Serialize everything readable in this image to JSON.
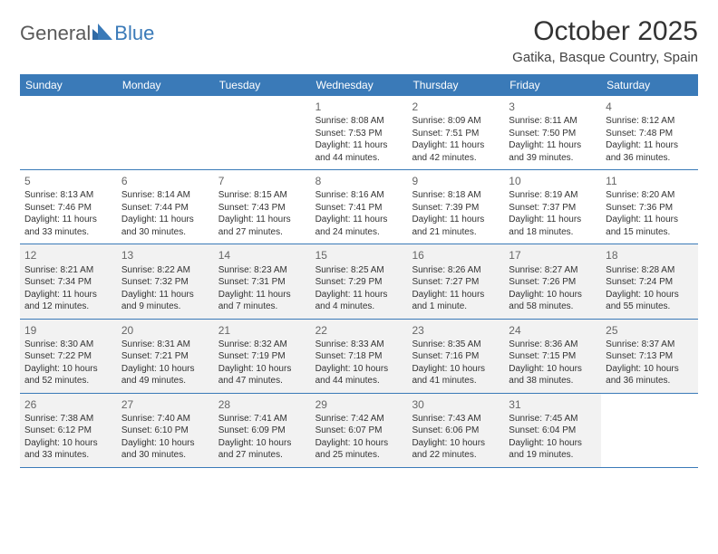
{
  "logo": {
    "text1": "General",
    "text2": "Blue"
  },
  "title": "October 2025",
  "location": "Gatika, Basque Country, Spain",
  "colors": {
    "header_bg": "#3a7ab8",
    "header_text": "#ffffff",
    "border": "#3a7ab8",
    "shaded": "#f2f2f2",
    "text": "#333333"
  },
  "weekdays": [
    "Sunday",
    "Monday",
    "Tuesday",
    "Wednesday",
    "Thursday",
    "Friday",
    "Saturday"
  ],
  "weeks": [
    [
      {
        "empty": true
      },
      {
        "empty": true
      },
      {
        "empty": true
      },
      {
        "day": "1",
        "sunrise": "Sunrise: 8:08 AM",
        "sunset": "Sunset: 7:53 PM",
        "daylight1": "Daylight: 11 hours",
        "daylight2": "and 44 minutes."
      },
      {
        "day": "2",
        "sunrise": "Sunrise: 8:09 AM",
        "sunset": "Sunset: 7:51 PM",
        "daylight1": "Daylight: 11 hours",
        "daylight2": "and 42 minutes."
      },
      {
        "day": "3",
        "sunrise": "Sunrise: 8:11 AM",
        "sunset": "Sunset: 7:50 PM",
        "daylight1": "Daylight: 11 hours",
        "daylight2": "and 39 minutes."
      },
      {
        "day": "4",
        "sunrise": "Sunrise: 8:12 AM",
        "sunset": "Sunset: 7:48 PM",
        "daylight1": "Daylight: 11 hours",
        "daylight2": "and 36 minutes."
      }
    ],
    [
      {
        "day": "5",
        "sunrise": "Sunrise: 8:13 AM",
        "sunset": "Sunset: 7:46 PM",
        "daylight1": "Daylight: 11 hours",
        "daylight2": "and 33 minutes."
      },
      {
        "day": "6",
        "sunrise": "Sunrise: 8:14 AM",
        "sunset": "Sunset: 7:44 PM",
        "daylight1": "Daylight: 11 hours",
        "daylight2": "and 30 minutes."
      },
      {
        "day": "7",
        "sunrise": "Sunrise: 8:15 AM",
        "sunset": "Sunset: 7:43 PM",
        "daylight1": "Daylight: 11 hours",
        "daylight2": "and 27 minutes."
      },
      {
        "day": "8",
        "sunrise": "Sunrise: 8:16 AM",
        "sunset": "Sunset: 7:41 PM",
        "daylight1": "Daylight: 11 hours",
        "daylight2": "and 24 minutes."
      },
      {
        "day": "9",
        "sunrise": "Sunrise: 8:18 AM",
        "sunset": "Sunset: 7:39 PM",
        "daylight1": "Daylight: 11 hours",
        "daylight2": "and 21 minutes."
      },
      {
        "day": "10",
        "sunrise": "Sunrise: 8:19 AM",
        "sunset": "Sunset: 7:37 PM",
        "daylight1": "Daylight: 11 hours",
        "daylight2": "and 18 minutes."
      },
      {
        "day": "11",
        "sunrise": "Sunrise: 8:20 AM",
        "sunset": "Sunset: 7:36 PM",
        "daylight1": "Daylight: 11 hours",
        "daylight2": "and 15 minutes."
      }
    ],
    [
      {
        "day": "12",
        "sunrise": "Sunrise: 8:21 AM",
        "sunset": "Sunset: 7:34 PM",
        "daylight1": "Daylight: 11 hours",
        "daylight2": "and 12 minutes.",
        "shaded": true
      },
      {
        "day": "13",
        "sunrise": "Sunrise: 8:22 AM",
        "sunset": "Sunset: 7:32 PM",
        "daylight1": "Daylight: 11 hours",
        "daylight2": "and 9 minutes.",
        "shaded": true
      },
      {
        "day": "14",
        "sunrise": "Sunrise: 8:23 AM",
        "sunset": "Sunset: 7:31 PM",
        "daylight1": "Daylight: 11 hours",
        "daylight2": "and 7 minutes.",
        "shaded": true
      },
      {
        "day": "15",
        "sunrise": "Sunrise: 8:25 AM",
        "sunset": "Sunset: 7:29 PM",
        "daylight1": "Daylight: 11 hours",
        "daylight2": "and 4 minutes.",
        "shaded": true
      },
      {
        "day": "16",
        "sunrise": "Sunrise: 8:26 AM",
        "sunset": "Sunset: 7:27 PM",
        "daylight1": "Daylight: 11 hours",
        "daylight2": "and 1 minute.",
        "shaded": true
      },
      {
        "day": "17",
        "sunrise": "Sunrise: 8:27 AM",
        "sunset": "Sunset: 7:26 PM",
        "daylight1": "Daylight: 10 hours",
        "daylight2": "and 58 minutes.",
        "shaded": true
      },
      {
        "day": "18",
        "sunrise": "Sunrise: 8:28 AM",
        "sunset": "Sunset: 7:24 PM",
        "daylight1": "Daylight: 10 hours",
        "daylight2": "and 55 minutes.",
        "shaded": true
      }
    ],
    [
      {
        "day": "19",
        "sunrise": "Sunrise: 8:30 AM",
        "sunset": "Sunset: 7:22 PM",
        "daylight1": "Daylight: 10 hours",
        "daylight2": "and 52 minutes.",
        "shaded": true
      },
      {
        "day": "20",
        "sunrise": "Sunrise: 8:31 AM",
        "sunset": "Sunset: 7:21 PM",
        "daylight1": "Daylight: 10 hours",
        "daylight2": "and 49 minutes.",
        "shaded": true
      },
      {
        "day": "21",
        "sunrise": "Sunrise: 8:32 AM",
        "sunset": "Sunset: 7:19 PM",
        "daylight1": "Daylight: 10 hours",
        "daylight2": "and 47 minutes.",
        "shaded": true
      },
      {
        "day": "22",
        "sunrise": "Sunrise: 8:33 AM",
        "sunset": "Sunset: 7:18 PM",
        "daylight1": "Daylight: 10 hours",
        "daylight2": "and 44 minutes.",
        "shaded": true
      },
      {
        "day": "23",
        "sunrise": "Sunrise: 8:35 AM",
        "sunset": "Sunset: 7:16 PM",
        "daylight1": "Daylight: 10 hours",
        "daylight2": "and 41 minutes.",
        "shaded": true
      },
      {
        "day": "24",
        "sunrise": "Sunrise: 8:36 AM",
        "sunset": "Sunset: 7:15 PM",
        "daylight1": "Daylight: 10 hours",
        "daylight2": "and 38 minutes.",
        "shaded": true
      },
      {
        "day": "25",
        "sunrise": "Sunrise: 8:37 AM",
        "sunset": "Sunset: 7:13 PM",
        "daylight1": "Daylight: 10 hours",
        "daylight2": "and 36 minutes.",
        "shaded": true
      }
    ],
    [
      {
        "day": "26",
        "sunrise": "Sunrise: 7:38 AM",
        "sunset": "Sunset: 6:12 PM",
        "daylight1": "Daylight: 10 hours",
        "daylight2": "and 33 minutes.",
        "shaded": true
      },
      {
        "day": "27",
        "sunrise": "Sunrise: 7:40 AM",
        "sunset": "Sunset: 6:10 PM",
        "daylight1": "Daylight: 10 hours",
        "daylight2": "and 30 minutes.",
        "shaded": true
      },
      {
        "day": "28",
        "sunrise": "Sunrise: 7:41 AM",
        "sunset": "Sunset: 6:09 PM",
        "daylight1": "Daylight: 10 hours",
        "daylight2": "and 27 minutes.",
        "shaded": true
      },
      {
        "day": "29",
        "sunrise": "Sunrise: 7:42 AM",
        "sunset": "Sunset: 6:07 PM",
        "daylight1": "Daylight: 10 hours",
        "daylight2": "and 25 minutes.",
        "shaded": true
      },
      {
        "day": "30",
        "sunrise": "Sunrise: 7:43 AM",
        "sunset": "Sunset: 6:06 PM",
        "daylight1": "Daylight: 10 hours",
        "daylight2": "and 22 minutes.",
        "shaded": true
      },
      {
        "day": "31",
        "sunrise": "Sunrise: 7:45 AM",
        "sunset": "Sunset: 6:04 PM",
        "daylight1": "Daylight: 10 hours",
        "daylight2": "and 19 minutes.",
        "shaded": true
      },
      {
        "empty": true
      }
    ]
  ]
}
